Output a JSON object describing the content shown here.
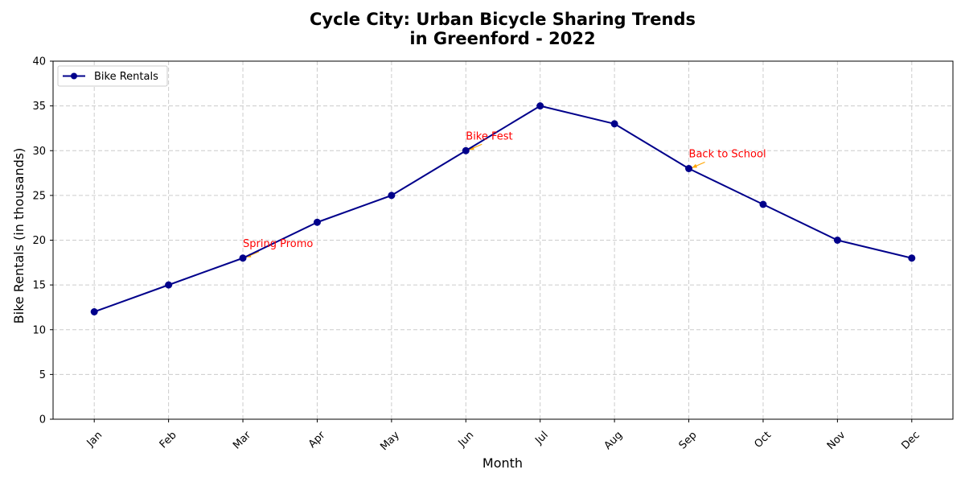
{
  "chart_data": {
    "type": "line",
    "title_lines": [
      "Cycle City: Urban Bicycle Sharing Trends",
      "in Greenford - 2022"
    ],
    "xlabel": "Month",
    "ylabel": "Bike Rentals (in thousands)",
    "categories": [
      "Jan",
      "Feb",
      "Mar",
      "Apr",
      "May",
      "Jun",
      "Jul",
      "Aug",
      "Sep",
      "Oct",
      "Nov",
      "Dec"
    ],
    "series": [
      {
        "name": "Bike Rentals",
        "values": [
          12,
          15,
          18,
          22,
          25,
          30,
          35,
          33,
          28,
          24,
          20,
          18
        ],
        "color": "#00008b",
        "marker": "circle"
      }
    ],
    "ylim": [
      0,
      40
    ],
    "yticks": [
      0,
      5,
      10,
      15,
      20,
      25,
      30,
      35,
      40
    ],
    "grid": true,
    "legend_position": "top-left",
    "annotations": [
      {
        "text": "Spring Promo",
        "category": "Mar",
        "value": 18,
        "color": "#ff0000",
        "arrow_color": "#ffa500"
      },
      {
        "text": "Bike Fest",
        "category": "Jun",
        "value": 30,
        "color": "#ff0000",
        "arrow_color": "#ffa500"
      },
      {
        "text": "Back to School",
        "category": "Sep",
        "value": 28,
        "color": "#ff0000",
        "arrow_color": "#ffa500"
      }
    ],
    "colors": {
      "grid": "#cccccc",
      "axis": "#000000"
    }
  }
}
